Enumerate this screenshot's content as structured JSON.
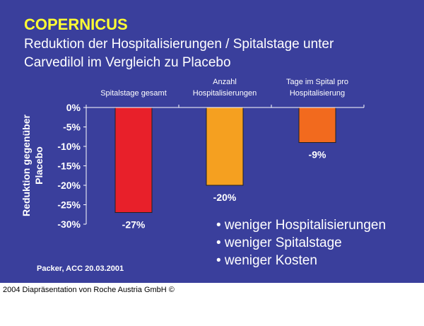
{
  "slide": {
    "title": "COPERNICUS",
    "subtitle_line1": "Reduktion der Hospitalisierungen / Spitalstage unter",
    "subtitle_line2": "Carvedilol im Vergleich zu Placebo",
    "bullets": [
      "• weniger Hospitalisierungen",
      "• weniger Spitalstage",
      "• weniger Kosten"
    ],
    "source": "Packer, ACC 20.03.2001",
    "footer": "2004 Diapräsentation von Roche Austria GmbH ©"
  },
  "colors": {
    "background": "#3a3f9c",
    "title": "#ffff33",
    "text": "#ffffff",
    "bars": [
      "#e8202a",
      "#f5a020",
      "#f26a1e"
    ]
  },
  "chart_data": {
    "type": "bar",
    "categories": [
      [
        "Spitalstage gesamt"
      ],
      [
        "Anzahl",
        "Hospitalisierungen"
      ],
      [
        "Tage im Spital pro",
        "Hospitalisierung"
      ]
    ],
    "values": [
      -27,
      -20,
      -9
    ],
    "data_labels": [
      "-27%",
      "-20%",
      "-9%"
    ],
    "ylabel": [
      "Reduktion gegenüber",
      "Placebo"
    ],
    "ylim": [
      -30,
      0
    ],
    "yticks": [
      0,
      -5,
      -10,
      -15,
      -20,
      -25,
      -30
    ],
    "ytick_labels": [
      "0%",
      "-5%",
      "-10%",
      "-15%",
      "-20%",
      "-25%",
      "-30%"
    ],
    "grid": false,
    "legend": "none"
  }
}
